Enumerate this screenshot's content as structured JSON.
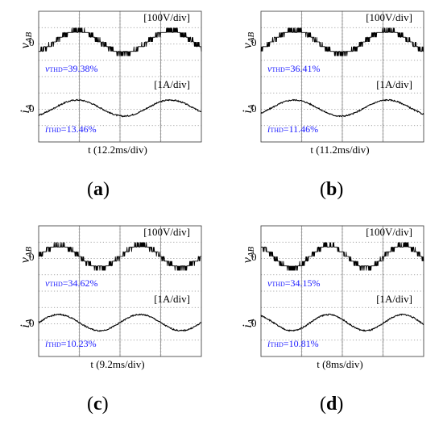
{
  "figure": {
    "panels": [
      {
        "id": "a",
        "caption": "a",
        "top_scale": "[100V/div]",
        "bottom_scale": "[1A/div]",
        "v_label_main": "v",
        "v_label_sub": "AB",
        "i_label_main": "i",
        "i_label_sub": "A",
        "zero_top": "0",
        "zero_bottom": "0",
        "v_thd_main": "v",
        "v_thd_sub": "THD",
        "v_thd_value": "=39.38%",
        "i_thd_main": "i",
        "i_thd_sub": "THD",
        "i_thd_value": "=13.46%",
        "time_label": "t (12.2ms/div)"
      },
      {
        "id": "b",
        "caption": "b",
        "top_scale": "[100V/div]",
        "bottom_scale": "[1A/div]",
        "v_label_main": "v",
        "v_label_sub": "AB",
        "i_label_main": "i",
        "i_label_sub": "A",
        "zero_top": "0",
        "zero_bottom": "0",
        "v_thd_main": "v",
        "v_thd_sub": "THD",
        "v_thd_value": "=36.41%",
        "i_thd_main": "i",
        "i_thd_sub": "THD",
        "i_thd_value": "=11.46%",
        "time_label": "t (11.2ms/div)"
      },
      {
        "id": "c",
        "caption": "c",
        "top_scale": "[100V/div]",
        "bottom_scale": "[1A/div]",
        "v_label_main": "v",
        "v_label_sub": "AB",
        "i_label_main": "i",
        "i_label_sub": "A",
        "zero_top": "0",
        "zero_bottom": "0",
        "v_thd_main": "v",
        "v_thd_sub": "THD",
        "v_thd_value": "=34.62%",
        "i_thd_main": "i",
        "i_thd_sub": "THD",
        "i_thd_value": "=10.23%",
        "time_label": "t (9.2ms/div)"
      },
      {
        "id": "d",
        "caption": "d",
        "top_scale": "[100V/div]",
        "bottom_scale": "[1A/div]",
        "v_label_main": "v",
        "v_label_sub": "AB",
        "i_label_main": "i",
        "i_label_sub": "A",
        "zero_top": "0",
        "zero_bottom": "0",
        "v_thd_main": "v",
        "v_thd_sub": "THD",
        "v_thd_value": "=34.15%",
        "i_thd_main": "i",
        "i_thd_sub": "THD",
        "i_thd_value": "=10.81%",
        "time_label": "t (8ms/div)"
      }
    ],
    "colors": {
      "trace": "#000000",
      "grid": "#8a8a8a",
      "thd_text": "#1a1aff"
    }
  },
  "chart_data": [
    {
      "type": "line",
      "panel": "a",
      "series": [
        {
          "name": "vAB",
          "waveform": "multilevel",
          "cycles": 1.75,
          "phase_deg": -60
        },
        {
          "name": "iA",
          "waveform": "sine",
          "cycles": 1.75,
          "phase_deg": -60
        }
      ]
    },
    {
      "type": "line",
      "panel": "b",
      "series": [
        {
          "name": "vAB",
          "waveform": "multilevel",
          "cycles": 1.75,
          "phase_deg": -40
        },
        {
          "name": "iA",
          "waveform": "sine",
          "cycles": 1.75,
          "phase_deg": -40
        }
      ]
    },
    {
      "type": "line",
      "panel": "c",
      "series": [
        {
          "name": "vAB",
          "waveform": "multilevel",
          "cycles": 2.0,
          "phase_deg": 0
        },
        {
          "name": "iA",
          "waveform": "sine",
          "cycles": 2.0,
          "phase_deg": 0
        }
      ]
    },
    {
      "type": "line",
      "panel": "d",
      "series": [
        {
          "name": "vAB",
          "waveform": "multilevel",
          "cycles": 2.2,
          "phase_deg": 120
        },
        {
          "name": "iA",
          "waveform": "sine",
          "cycles": 2.2,
          "phase_deg": 120
        }
      ]
    }
  ]
}
